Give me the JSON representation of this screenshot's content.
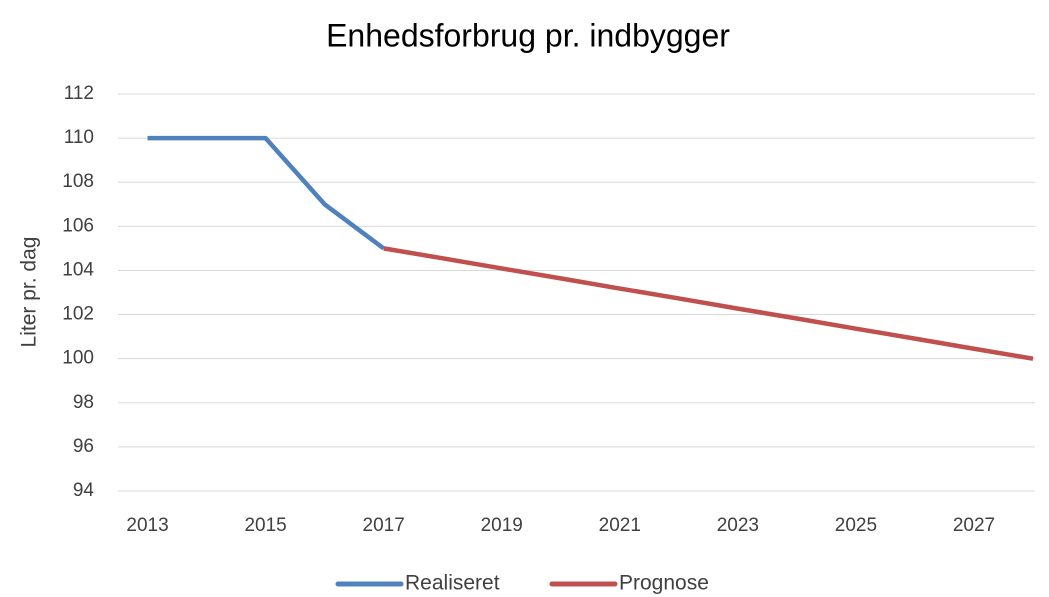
{
  "chart_data": {
    "type": "line",
    "title": "Enhedsforbrug pr. indbygger",
    "y_label": "Liter pr. dag",
    "x": [
      2013,
      2014,
      2015,
      2016,
      2017,
      2018,
      2019,
      2020,
      2021,
      2022,
      2023,
      2024,
      2025,
      2026,
      2027,
      2028
    ],
    "series": [
      {
        "name": "Realiseret",
        "color": "#4f81bd",
        "values": [
          110,
          110,
          110,
          107,
          105,
          null,
          null,
          null,
          null,
          null,
          null,
          null,
          null,
          null,
          null,
          null
        ]
      },
      {
        "name": "Prognose",
        "color": "#c0504d",
        "values": [
          null,
          null,
          null,
          null,
          105,
          104.55,
          104.09,
          103.64,
          103.18,
          102.73,
          102.27,
          101.82,
          101.36,
          100.91,
          100.45,
          100
        ]
      }
    ],
    "xlim": [
      2012.5,
      2028
    ],
    "xticks": [
      2013,
      2015,
      2017,
      2019,
      2021,
      2023,
      2025,
      2027
    ],
    "ylim": [
      94,
      112
    ],
    "yticks": [
      94,
      96,
      98,
      100,
      102,
      104,
      106,
      108,
      110,
      112
    ],
    "grid": true,
    "legend": "bottom"
  }
}
